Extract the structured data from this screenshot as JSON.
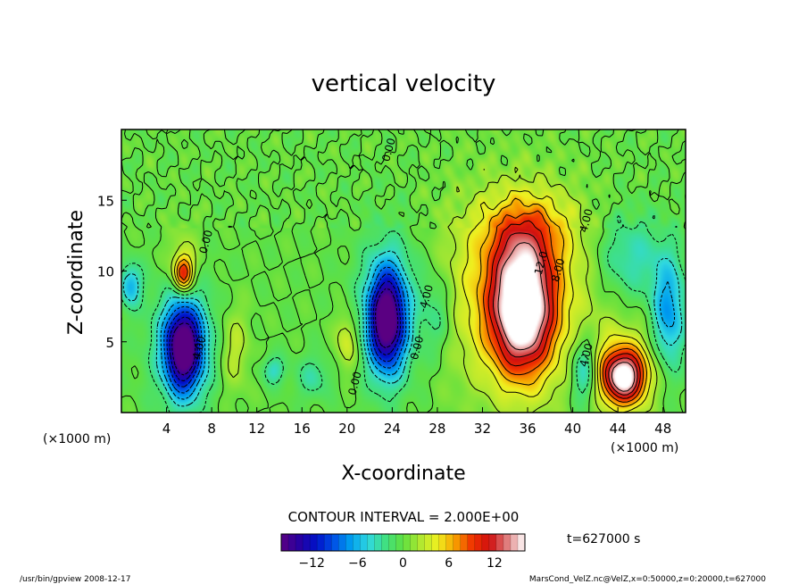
{
  "chart_data": {
    "type": "heatmap",
    "title": "vertical velocity",
    "xlabel": "X-coordinate",
    "ylabel": "Z-coordinate",
    "x_unit_left": "(×1000 m)",
    "x_unit_right": "(×1000 m)",
    "xlim": [
      0,
      50
    ],
    "ylim": [
      0,
      20
    ],
    "x_ticks": [
      4,
      8,
      12,
      16,
      20,
      24,
      28,
      32,
      36,
      40,
      44,
      48
    ],
    "x_tick_labels": [
      "4",
      "8",
      "12",
      "16",
      "20",
      "24",
      "28",
      "32",
      "36",
      "40",
      "44",
      "48"
    ],
    "y_ticks": [
      5,
      10,
      15
    ],
    "y_tick_labels": [
      "5",
      "10",
      "15"
    ],
    "contour_interval_text": "CONTOUR INTERVAL = 2.000E+00",
    "time_text": "t=627000 s",
    "colorbar": {
      "min": -16,
      "max": 16,
      "ticks": [
        -12,
        -6,
        0,
        6,
        12
      ],
      "tick_labels": [
        "−12",
        "−6",
        "0",
        "6",
        "12"
      ]
    },
    "contour_labels": [
      {
        "text": "0.00",
        "x": 24.0,
        "z": 18.5
      },
      {
        "text": "0.00",
        "x": 7.8,
        "z": 12.0
      },
      {
        "text": "4.00",
        "x": 7.2,
        "z": 4.5
      },
      {
        "text": "0.00",
        "x": 21.0,
        "z": 2.0
      },
      {
        "text": "0.00",
        "x": 26.5,
        "z": 4.5
      },
      {
        "text": "-4.00",
        "x": 27.3,
        "z": 8.0
      },
      {
        "text": "4.00",
        "x": 41.5,
        "z": 13.5
      },
      {
        "text": "8.00",
        "x": 39.0,
        "z": 10.0
      },
      {
        "text": "12.0",
        "x": 37.5,
        "z": 10.5
      },
      {
        "text": "4.00",
        "x": 41.5,
        "z": 4.0
      }
    ],
    "features": [
      {
        "x": 35.5,
        "z": 7.5,
        "rx": 2.6,
        "rz": 4.6,
        "amp": 16
      },
      {
        "x": 35.0,
        "z": 8.5,
        "rx": 6.5,
        "rz": 6.5,
        "amp": 6
      },
      {
        "x": 36.0,
        "z": 13.0,
        "rx": 4.0,
        "rz": 2.5,
        "amp": 4
      },
      {
        "x": 5.5,
        "z": 4.5,
        "rx": 1.6,
        "rz": 3.0,
        "amp": -16
      },
      {
        "x": 5.5,
        "z": 5.0,
        "rx": 3.0,
        "rz": 4.5,
        "amp": -4
      },
      {
        "x": 23.5,
        "z": 6.5,
        "rx": 1.6,
        "rz": 3.5,
        "amp": -16
      },
      {
        "x": 24.0,
        "z": 7.5,
        "rx": 3.0,
        "rz": 5.0,
        "amp": -4
      },
      {
        "x": 5.5,
        "z": 9.8,
        "rx": 0.8,
        "rz": 1.2,
        "amp": 9
      },
      {
        "x": 5.5,
        "z": 10.5,
        "rx": 1.5,
        "rz": 2.5,
        "amp": 3
      },
      {
        "x": 44.5,
        "z": 2.5,
        "rx": 1.8,
        "rz": 1.8,
        "amp": 13
      },
      {
        "x": 44.5,
        "z": 3.0,
        "rx": 3.0,
        "rz": 3.0,
        "amp": 5
      },
      {
        "x": 41.0,
        "z": 3.0,
        "rx": 1.2,
        "rz": 2.5,
        "amp": -6
      },
      {
        "x": 48.5,
        "z": 7.0,
        "rx": 1.5,
        "rz": 4.0,
        "amp": -7
      },
      {
        "x": 45.0,
        "z": 11.0,
        "rx": 3.0,
        "rz": 3.0,
        "amp": -4
      },
      {
        "x": 0.8,
        "z": 9.0,
        "rx": 1.0,
        "rz": 1.5,
        "amp": -6
      },
      {
        "x": 20.0,
        "z": 5.0,
        "rx": 1.0,
        "rz": 2.0,
        "amp": 4
      },
      {
        "x": 10.0,
        "z": 4.5,
        "rx": 1.3,
        "rz": 3.0,
        "amp": 3
      },
      {
        "x": 13.5,
        "z": 3.0,
        "rx": 1.0,
        "rz": 1.0,
        "amp": -4
      },
      {
        "x": 17.0,
        "z": 2.5,
        "rx": 1.5,
        "rz": 1.5,
        "amp": -3
      },
      {
        "x": 28.0,
        "z": 7.0,
        "rx": 1.5,
        "rz": 3.0,
        "amp": -3
      }
    ]
  },
  "footer": {
    "left": "/usr/bin/gpview  2008-12-17",
    "right": "MarsCond_VelZ.nc@VelZ,x=0:50000,z=0:20000,t=627000"
  },
  "colors": {
    "palette": [
      "#5a0082",
      "#2a00a0",
      "#0010c8",
      "#0050e6",
      "#00a0f0",
      "#30d8e0",
      "#40e080",
      "#60e040",
      "#b0e830",
      "#f0f020",
      "#f8a000",
      "#f03000",
      "#d01010",
      "#e08080",
      "#ffffff"
    ]
  }
}
